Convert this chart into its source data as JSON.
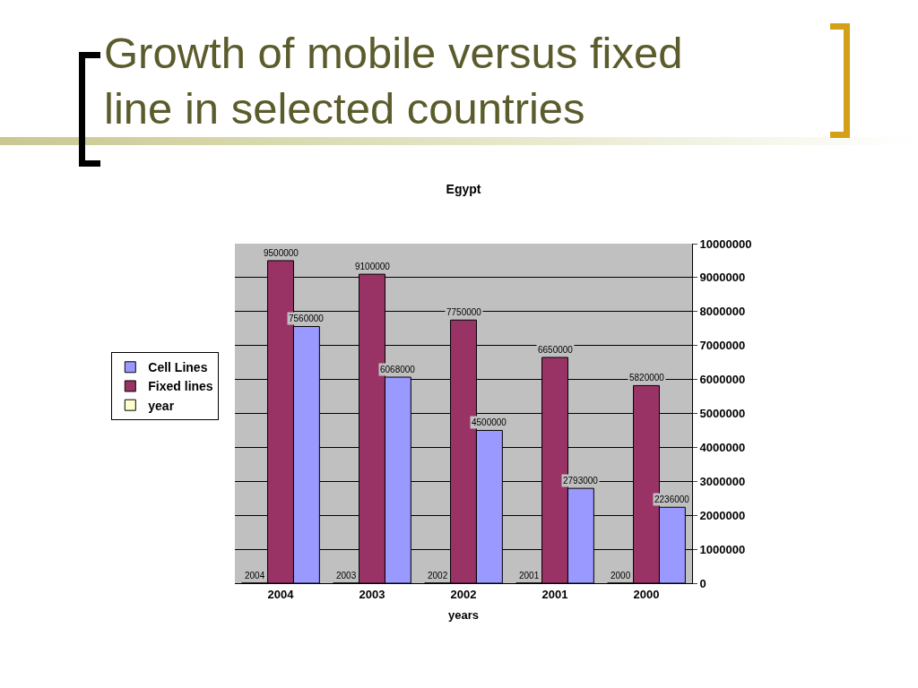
{
  "chart_data": {
    "type": "bar",
    "title": "Growth of mobile versus fixed line in selected countries",
    "subtitle": "Egypt",
    "xlabel": "years",
    "categories": [
      "2004",
      "2003",
      "2002",
      "2001",
      "2000"
    ],
    "series": [
      {
        "name": "year",
        "color": "#ffffcc",
        "values": [
          2004,
          2003,
          2002,
          2001,
          2000
        ]
      },
      {
        "name": "Fixed lines",
        "color": "#993366",
        "values": [
          9500000,
          9100000,
          7750000,
          6650000,
          5820000
        ]
      },
      {
        "name": "Cell Lines",
        "color": "#9999ff",
        "values": [
          7560000,
          6068000,
          4500000,
          2793000,
          2236000
        ]
      }
    ],
    "ylim": [
      0,
      10000000
    ],
    "yticks": [
      0,
      1000000,
      2000000,
      3000000,
      4000000,
      5000000,
      6000000,
      7000000,
      8000000,
      9000000,
      10000000
    ],
    "grid": "y",
    "legend": "left",
    "data_labels": true
  }
}
